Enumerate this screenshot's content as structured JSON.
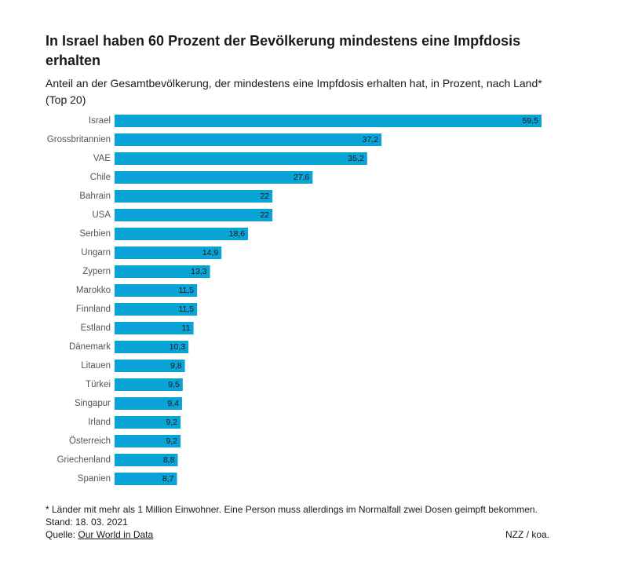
{
  "chart_data": {
    "type": "bar",
    "orientation": "horizontal",
    "title": "In Israel haben 60 Prozent der Bevölkerung mindestens eine Impfdosis erhalten",
    "subtitle": "Anteil an der Gesamtbevölkerung, der mindestens eine Impfdosis erhalten hat, in Prozent, nach Land* (Top 20)",
    "categories": [
      "Israel",
      "Grossbritannien",
      "VAE",
      "Chile",
      "Bahrain",
      "USA",
      "Serbien",
      "Ungarn",
      "Zypern",
      "Marokko",
      "Finnland",
      "Estland",
      "Dänemark",
      "Litauen",
      "Türkei",
      "Singapur",
      "Irland",
      "Österreich",
      "Griechenland",
      "Spanien"
    ],
    "values": [
      59.5,
      37.2,
      35.2,
      27.6,
      22,
      22,
      18.6,
      14.9,
      13.3,
      11.5,
      11.5,
      11,
      10.3,
      9.8,
      9.5,
      9.4,
      9.2,
      9.2,
      8.8,
      8.7
    ],
    "value_labels": [
      "59,5",
      "37,2",
      "35,2",
      "27,6",
      "22",
      "22",
      "18,6",
      "14,9",
      "13,3",
      "11,5",
      "11,5",
      "11",
      "10,3",
      "9,8",
      "9,5",
      "9,4",
      "9,2",
      "9,2",
      "8,8",
      "8,7"
    ],
    "xlim": [
      0,
      59.5
    ],
    "xlabel": "",
    "ylabel": "",
    "grid": false,
    "bar_color": "#0aa3d6"
  },
  "footer": {
    "footnote": "* Länder mit mehr als 1 Million Einwohner. Eine Person muss allerdings im Normalfall zwei Dosen geimpft bekommen.",
    "stand": "Stand: 18. 03. 2021",
    "source_prefix": "Quelle:",
    "source_link": "Our World in Data",
    "credit": "NZZ / koa."
  }
}
